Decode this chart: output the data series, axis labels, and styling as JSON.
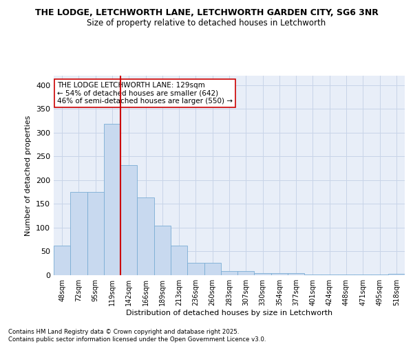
{
  "title1": "THE LODGE, LETCHWORTH LANE, LETCHWORTH GARDEN CITY, SG6 3NR",
  "title2": "Size of property relative to detached houses in Letchworth",
  "xlabel": "Distribution of detached houses by size in Letchworth",
  "ylabel": "Number of detached properties",
  "categories": [
    "48sqm",
    "72sqm",
    "95sqm",
    "119sqm",
    "142sqm",
    "166sqm",
    "189sqm",
    "213sqm",
    "236sqm",
    "260sqm",
    "283sqm",
    "307sqm",
    "330sqm",
    "354sqm",
    "377sqm",
    "401sqm",
    "424sqm",
    "448sqm",
    "471sqm",
    "495sqm",
    "518sqm"
  ],
  "values": [
    62,
    175,
    175,
    318,
    232,
    163,
    104,
    62,
    26,
    26,
    9,
    9,
    5,
    4,
    4,
    2,
    1,
    1,
    1,
    1,
    3
  ],
  "bar_color": "#c8d9ef",
  "bar_edgecolor": "#7aadd4",
  "vline_x": 3.5,
  "vline_color": "#cc0000",
  "annotation_text": "THE LODGE LETCHWORTH LANE: 129sqm\n← 54% of detached houses are smaller (642)\n46% of semi-detached houses are larger (550) →",
  "annotation_box_color": "white",
  "annotation_box_edgecolor": "#cc0000",
  "grid_color": "#c8d4e8",
  "bg_color": "#e8eef8",
  "footer": "Contains HM Land Registry data © Crown copyright and database right 2025.\nContains public sector information licensed under the Open Government Licence v3.0.",
  "ylim": [
    0,
    420
  ],
  "yticks": [
    0,
    50,
    100,
    150,
    200,
    250,
    300,
    350,
    400
  ]
}
